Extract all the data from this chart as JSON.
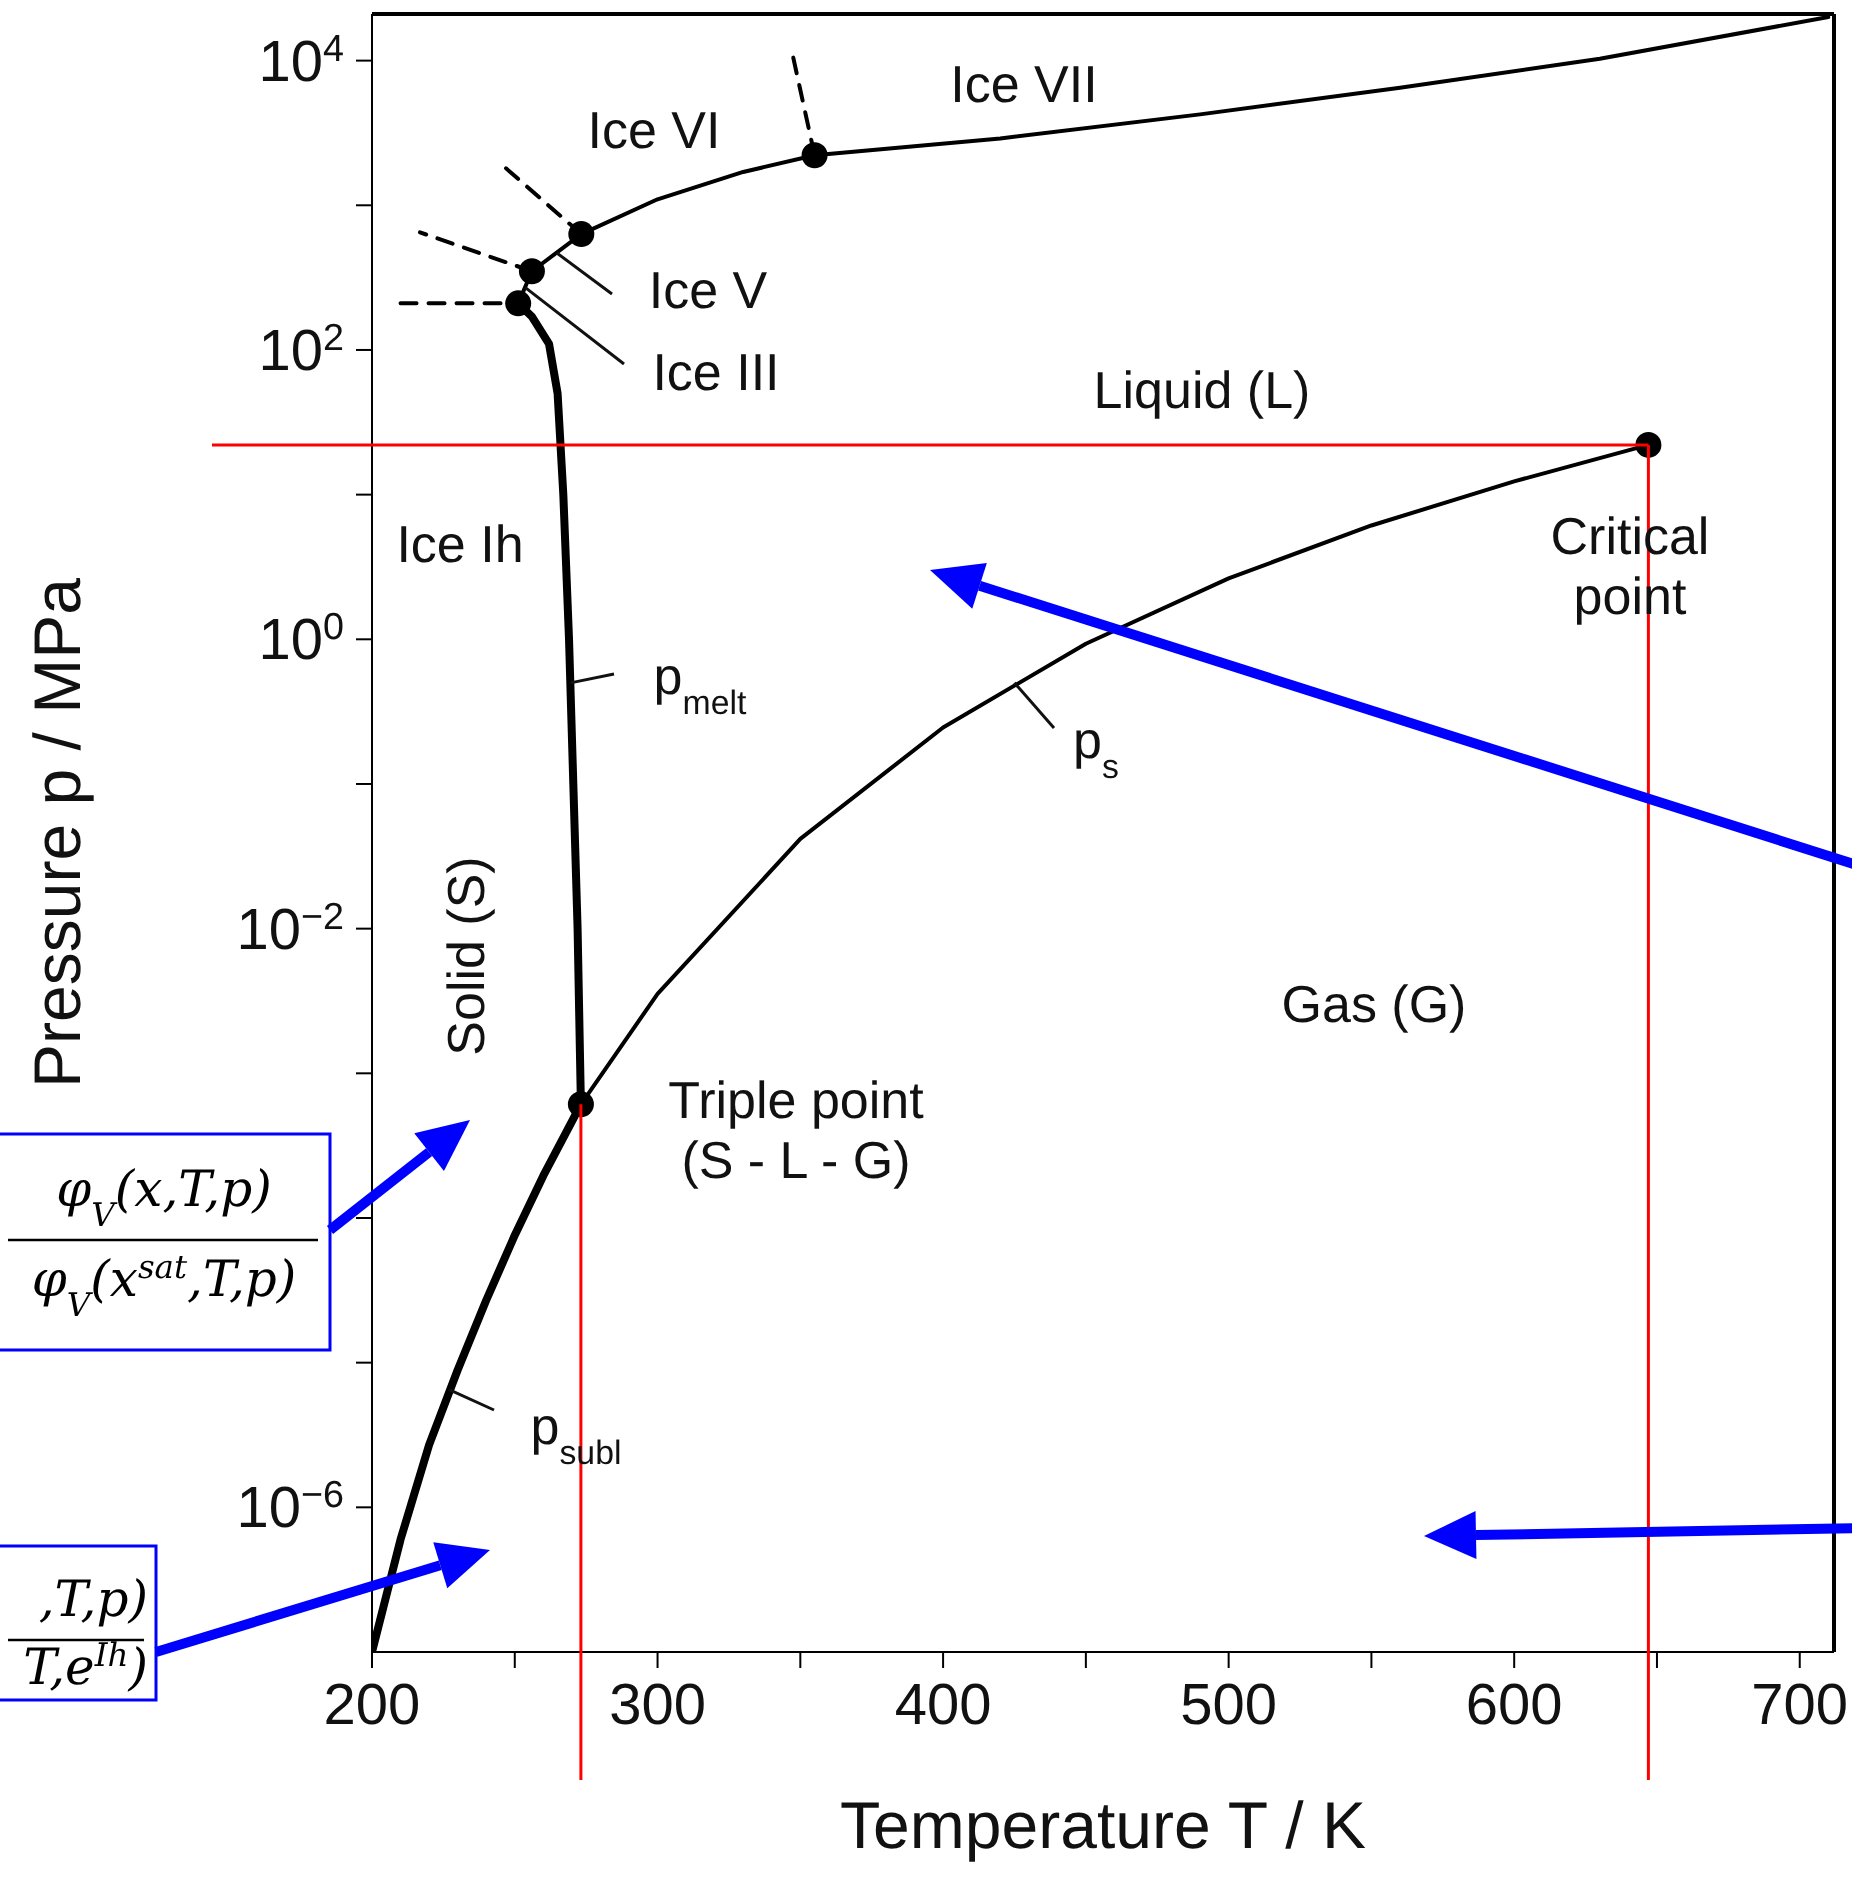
{
  "chart_data": {
    "type": "line",
    "xlabel": "Temperature T / K",
    "ylabel": "Pressure p / MPa",
    "log": "y",
    "marker": "none",
    "line_style": "solid",
    "xlim": [
      200,
      712
    ],
    "ylim": [
      1e-07,
      21000
    ],
    "xticks": [
      200,
      {
        "value": 250,
        "label": null
      },
      300,
      {
        "value": 350,
        "label": null
      },
      400,
      {
        "value": 450,
        "label": null
      },
      500,
      {
        "value": 550,
        "label": null
      },
      600,
      {
        "value": 650,
        "label": null
      },
      700
    ],
    "yticks": [
      {
        "value": 10000,
        "label": "10$^{4}$"
      },
      {
        "value": 1000,
        "label": null
      },
      {
        "value": 100,
        "label": "10$^{2}$"
      },
      {
        "value": 10,
        "label": null
      },
      {
        "value": 1,
        "label": "10$^{0}$"
      },
      {
        "value": 0.1,
        "label": null
      },
      {
        "value": 0.01,
        "label": "10$^{−2}$"
      },
      {
        "value": 0.001,
        "label": null
      },
      {
        "value": 0.0001,
        "label": null
      },
      {
        "value": 1e-05,
        "label": null
      },
      {
        "value": 1e-06,
        "label": "10$^{−6}$"
      }
    ],
    "series": [
      {
        "color": "#000000",
        "x": [
          200,
          210,
          220,
          230,
          240,
          250,
          260,
          273.16
        ],
        "values": [
          1e-07,
          6e-07,
          2.7e-06,
          8.9e-06,
          2.7e-05,
          7.6e-05,
          0.000196,
          0.000611
        ]
      },
      {
        "color": "#000000",
        "x": [
          273.16,
          272,
          270.5,
          269,
          267,
          265,
          262,
          256,
          251.2
        ],
        "values": [
          0.000611,
          0.01,
          0.1,
          1,
          10,
          50,
          110,
          170,
          209.9
        ]
      },
      {
        "color": "#000000",
        "x": [
          251.2,
          256,
          273.3,
          300,
          330,
          355,
          420,
          490,
          560,
          630,
          710
        ],
        "values": [
          209.9,
          350,
          632,
          1100,
          1700,
          2216,
          2900,
          4250,
          6500,
          10300,
          20000
        ]
      },
      {
        "color": "#000000",
        "x": [
          273.16,
          300,
          350,
          400,
          450,
          500,
          550,
          600,
          647
        ],
        "values": [
          0.000611,
          0.00354,
          0.0417,
          0.2457,
          0.932,
          2.64,
          6.12,
          12.35,
          22.064
        ]
      },
      {
        "color": "#000000",
        "line_style": "dashed",
        "x": [
          210,
          251.2
        ],
        "values": [
          209.9,
          209.9
        ]
      },
      {
        "color": "#000000",
        "line_style": "dashed",
        "x": [
          256,
          216.8
        ],
        "values": [
          350,
          650
        ]
      },
      {
        "color": "#000000",
        "line_style": "dashed",
        "x": [
          273.3,
          244.3
        ],
        "values": [
          632,
          2000
        ]
      },
      {
        "color": "#000000",
        "line_style": "dashed",
        "x": [
          355,
          347.3
        ],
        "values": [
          2216,
          11000
        ]
      },
      {
        "type": "scatter",
        "marker": "circle",
        "color": "#000000",
        "x": [
          273.16,
          647,
          251.2,
          256,
          273.3,
          355
        ],
        "values": [
          0.000611,
          22.064,
          209.9,
          350,
          632,
          2216
        ]
      }
    ],
    "ref_lines": [
      {
        "axis": "y",
        "value": 22.064,
        "color": "#ff0000"
      },
      {
        "axis": "x",
        "value": 273.16,
        "color": "#ff0000"
      },
      {
        "axis": "x",
        "value": 647,
        "color": "#ff0000"
      }
    ],
    "annotations": [
      "Ice VI",
      "Ice VII",
      {
        "text": "Ice V",
        "x": 264.6,
        "y": 470
      },
      {
        "text": "Ice III",
        "x": 253.6,
        "y": 271
      },
      "Liquid (L)",
      "Ice Ih",
      "Critical\npoint",
      {
        "text": "p$_{melt}$",
        "x": 269.5,
        "y": 0.5
      },
      "Solid (S)",
      {
        "text": "p$_{s}$",
        "x": 425,
        "y": 0.5
      },
      "Gas (G)",
      "Triple point\n(S - L - G)",
      {
        "text": "p$_{subl}$",
        "x": 227,
        "y": 6.5e-06
      },
      "φ$_{V}$(x,T,p)",
      "φ$_{V}$(x$^{sat}$,T,p)",
      ",T,p)",
      "T,e$^{Ih}$)"
    ]
  }
}
